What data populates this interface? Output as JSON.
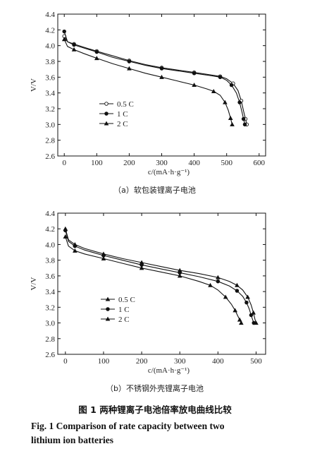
{
  "chart_data": [
    {
      "type": "line",
      "subtitle": "（a）软包装锂离子电池",
      "xlabel": "c/(mA·h·g⁻¹)",
      "ylabel": "V/V",
      "xlim": [
        -20,
        620
      ],
      "ylim": [
        2.6,
        4.4
      ],
      "xticks": [
        0,
        100,
        200,
        300,
        400,
        500,
        600
      ],
      "yticks": [
        2.6,
        2.8,
        3.0,
        3.2,
        3.4,
        3.6,
        3.8,
        4.0,
        4.2,
        4.4
      ],
      "grid": false,
      "legend_position": "lower-left",
      "series": [
        {
          "name": "0.5 C",
          "marker": "circle-open",
          "x": [
            0,
            10,
            30,
            60,
            100,
            150,
            200,
            250,
            300,
            350,
            400,
            450,
            480,
            500,
            520,
            535,
            545,
            552,
            558,
            562
          ],
          "y": [
            4.12,
            4.05,
            4.02,
            3.98,
            3.93,
            3.87,
            3.81,
            3.76,
            3.72,
            3.69,
            3.66,
            3.63,
            3.61,
            3.58,
            3.52,
            3.43,
            3.3,
            3.17,
            3.07,
            3.0
          ]
        },
        {
          "name": "1 C",
          "marker": "circle-filled",
          "x": [
            0,
            10,
            30,
            60,
            100,
            150,
            200,
            250,
            300,
            350,
            400,
            450,
            480,
            500,
            515,
            530,
            540,
            547,
            552,
            556
          ],
          "y": [
            4.18,
            4.05,
            4.01,
            3.97,
            3.92,
            3.85,
            3.8,
            3.75,
            3.71,
            3.68,
            3.65,
            3.62,
            3.6,
            3.56,
            3.5,
            3.4,
            3.28,
            3.16,
            3.07,
            3.0
          ]
        },
        {
          "name": "2 C",
          "marker": "triangle-filled",
          "x": [
            0,
            10,
            30,
            60,
            100,
            150,
            200,
            250,
            300,
            350,
            400,
            440,
            460,
            480,
            495,
            505,
            512,
            517
          ],
          "y": [
            4.08,
            3.99,
            3.95,
            3.9,
            3.84,
            3.77,
            3.71,
            3.65,
            3.6,
            3.55,
            3.5,
            3.45,
            3.42,
            3.37,
            3.28,
            3.18,
            3.08,
            3.0
          ]
        }
      ]
    },
    {
      "type": "line",
      "subtitle": "（b）不锈钢外壳锂离子电池",
      "xlabel": "c/(mA·h·g⁻¹)",
      "ylabel": "V/V",
      "xlim": [
        -20,
        525
      ],
      "ylim": [
        2.6,
        4.4
      ],
      "xticks": [
        0,
        100,
        200,
        300,
        400,
        500
      ],
      "yticks": [
        2.6,
        2.8,
        3.0,
        3.2,
        3.4,
        3.6,
        3.8,
        4.0,
        4.2,
        4.4
      ],
      "grid": false,
      "legend_position": "lower-left",
      "series": [
        {
          "name": "0.5 C",
          "marker": "triangle-filled",
          "x": [
            0,
            8,
            25,
            50,
            100,
            150,
            200,
            250,
            300,
            350,
            400,
            430,
            450,
            465,
            478,
            487,
            493,
            497,
            500
          ],
          "y": [
            4.2,
            4.06,
            4.0,
            3.95,
            3.88,
            3.82,
            3.77,
            3.72,
            3.67,
            3.63,
            3.58,
            3.53,
            3.48,
            3.42,
            3.33,
            3.23,
            3.13,
            3.05,
            3.0
          ]
        },
        {
          "name": "1 C",
          "marker": "circle-filled",
          "x": [
            0,
            8,
            25,
            50,
            100,
            150,
            200,
            250,
            300,
            350,
            400,
            430,
            450,
            465,
            475,
            482,
            487,
            491,
            494
          ],
          "y": [
            4.18,
            4.04,
            3.98,
            3.93,
            3.86,
            3.8,
            3.74,
            3.69,
            3.64,
            3.59,
            3.53,
            3.47,
            3.41,
            3.34,
            3.26,
            3.18,
            3.1,
            3.04,
            3.0
          ]
        },
        {
          "name": "2 C",
          "marker": "triangle-filled",
          "x": [
            0,
            8,
            25,
            50,
            100,
            150,
            200,
            250,
            300,
            350,
            380,
            400,
            420,
            435,
            445,
            452,
            457,
            461
          ],
          "y": [
            4.1,
            3.98,
            3.92,
            3.88,
            3.82,
            3.76,
            3.7,
            3.65,
            3.6,
            3.53,
            3.48,
            3.42,
            3.33,
            3.24,
            3.16,
            3.09,
            3.04,
            3.0
          ]
        }
      ]
    }
  ],
  "caption": {
    "cn": "图 1    两种锂离子电池倍率放电曲线比较",
    "en_line1": "Fig. 1    Comparison of rate capacity between two",
    "en_line2": "lithium ion batteries"
  }
}
